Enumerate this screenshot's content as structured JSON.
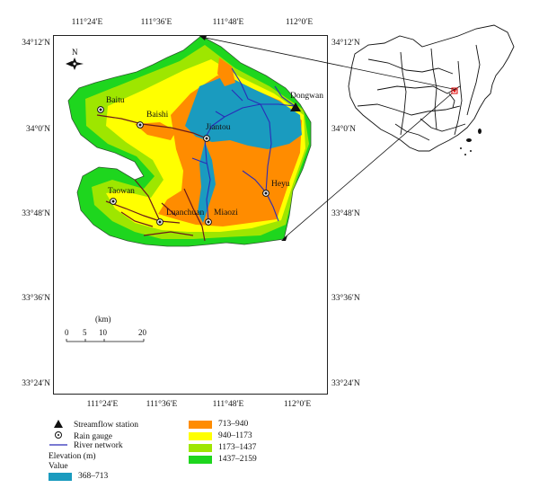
{
  "coords": {
    "top": [
      "111°24′E",
      "111°36′E",
      "111°48′E",
      "112°0′E"
    ],
    "bottom": [
      "111°24′E",
      "111°36′E",
      "111°48′E",
      "112°0′E"
    ],
    "left": [
      "34°12′N",
      "34°0′N",
      "33°48′N",
      "33°36′N",
      "33°24′N"
    ],
    "right": [
      "34°12′N",
      "34°0′N",
      "33°48′N",
      "33°36′N",
      "33°24′N"
    ]
  },
  "north_label": "N",
  "stations": {
    "streamflow": "Dongwan",
    "rain_gauges": [
      "Baitu",
      "Baishi",
      "Jiantou",
      "Heyu",
      "Taowan",
      "Luanchuan",
      "Miaozi"
    ]
  },
  "scale_bar": {
    "unit": "(km)",
    "ticks": [
      "0",
      "5",
      "10",
      "20"
    ]
  },
  "legend": {
    "streamflow_station": "Streamflow station",
    "rain_gauge": "Rain gauge",
    "river_network": "River network",
    "elevation_title": "Elevation (m)",
    "value_label": "Value",
    "classes": [
      {
        "label": "368–713",
        "color": "#1a9bbf"
      },
      {
        "label": "713–940",
        "color": "#ff8c00"
      },
      {
        "label": "940–1173",
        "color": "#ffff00"
      },
      {
        "label": "1173–1437",
        "color": "#9ee600"
      },
      {
        "label": "1437–2159",
        "color": "#1ed61e"
      }
    ]
  },
  "colors": {
    "river": "#2b2bb8",
    "stream": "#6b1a1a",
    "frame": "#222222"
  }
}
